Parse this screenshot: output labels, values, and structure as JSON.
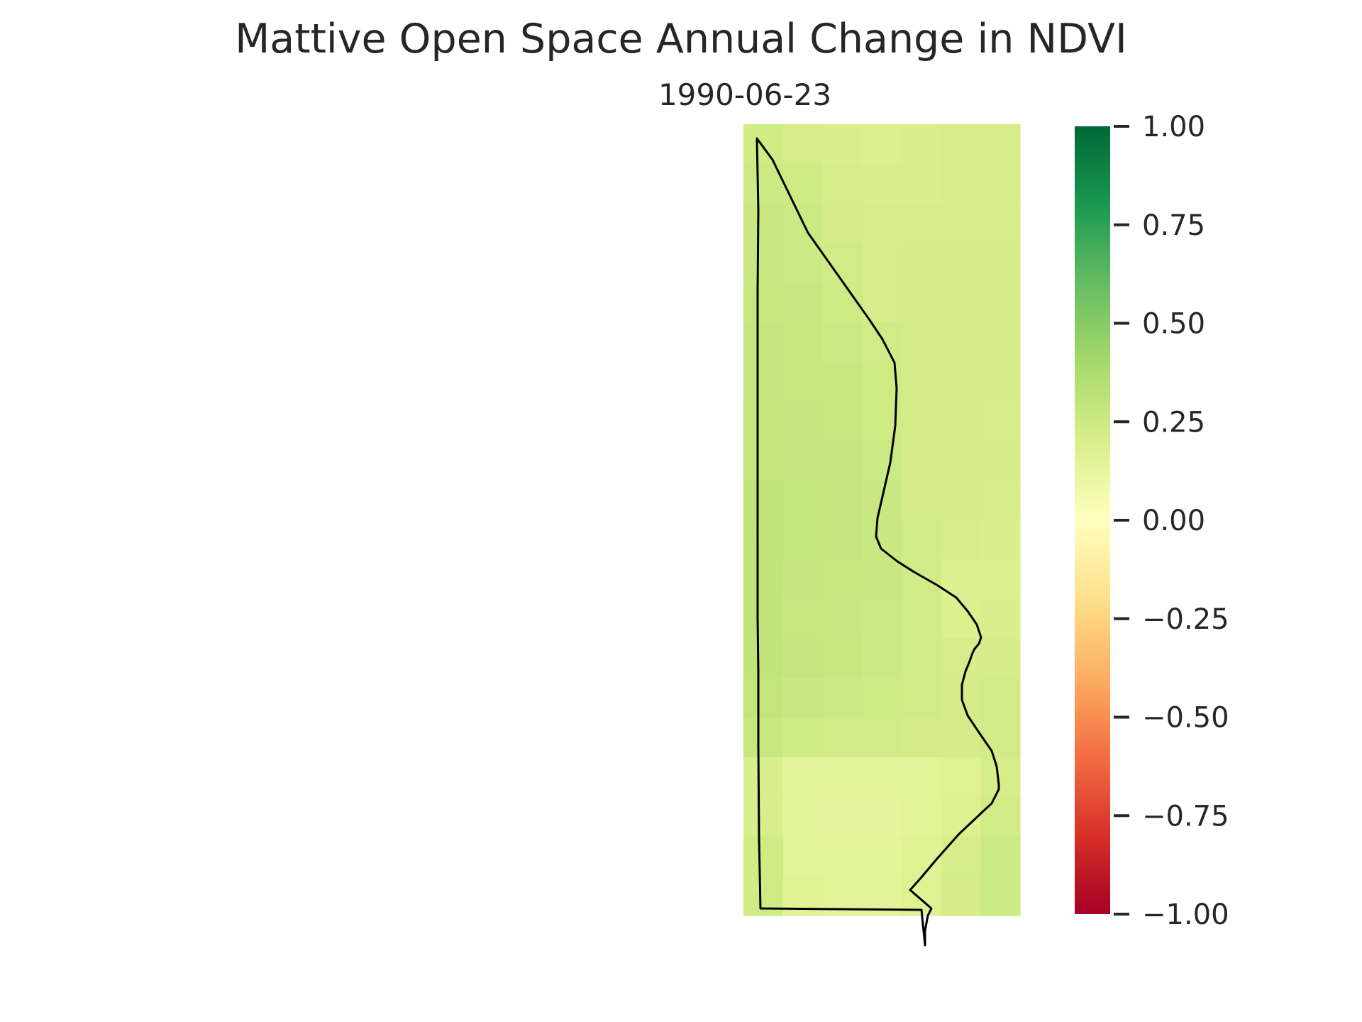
{
  "title": "Mattive Open Space Annual Change in NDVI",
  "subplot_title": "1990-06-23",
  "chart_data": {
    "type": "heatmap",
    "title": "Mattive Open Space Annual Change in NDVI",
    "subtitle": "1990-06-23",
    "xlabel": "",
    "ylabel": "",
    "grid": false,
    "colormap": "RdYlGn",
    "color_range": [
      -1.0,
      1.0
    ],
    "colorbar_ticks": [
      1.0,
      0.75,
      0.5,
      0.25,
      0.0,
      -0.25,
      -0.5,
      -0.75,
      -1.0
    ],
    "colorbar_tick_labels": [
      "1.00",
      "0.75",
      "0.50",
      "0.25",
      "0.00",
      "−0.25",
      "−0.50",
      "−0.75",
      "−1.00"
    ],
    "grid_values": [
      [
        0.24,
        0.21,
        0.2,
        0.19,
        0.2,
        0.21,
        0.21
      ],
      [
        0.25,
        0.24,
        0.21,
        0.2,
        0.2,
        0.21,
        0.21
      ],
      [
        0.26,
        0.25,
        0.22,
        0.21,
        0.21,
        0.21,
        0.21
      ],
      [
        0.26,
        0.25,
        0.23,
        0.21,
        0.22,
        0.22,
        0.22
      ],
      [
        0.27,
        0.26,
        0.24,
        0.21,
        0.22,
        0.22,
        0.22
      ],
      [
        0.28,
        0.27,
        0.25,
        0.23,
        0.22,
        0.22,
        0.22
      ],
      [
        0.28,
        0.27,
        0.27,
        0.24,
        0.22,
        0.22,
        0.22
      ],
      [
        0.29,
        0.28,
        0.27,
        0.24,
        0.22,
        0.22,
        0.21
      ],
      [
        0.29,
        0.28,
        0.28,
        0.25,
        0.22,
        0.22,
        0.22
      ],
      [
        0.3,
        0.29,
        0.28,
        0.26,
        0.22,
        0.22,
        0.21
      ],
      [
        0.3,
        0.29,
        0.28,
        0.26,
        0.23,
        0.21,
        0.2
      ],
      [
        0.3,
        0.28,
        0.27,
        0.26,
        0.23,
        0.19,
        0.19
      ],
      [
        0.3,
        0.27,
        0.26,
        0.25,
        0.23,
        0.19,
        0.2
      ],
      [
        0.3,
        0.28,
        0.27,
        0.25,
        0.23,
        0.21,
        0.22
      ],
      [
        0.29,
        0.26,
        0.25,
        0.24,
        0.23,
        0.22,
        0.23
      ],
      [
        0.27,
        0.24,
        0.23,
        0.23,
        0.22,
        0.22,
        0.23
      ],
      [
        0.2,
        0.14,
        0.14,
        0.14,
        0.15,
        0.17,
        0.21
      ],
      [
        0.2,
        0.14,
        0.13,
        0.13,
        0.15,
        0.18,
        0.23
      ],
      [
        0.24,
        0.15,
        0.14,
        0.14,
        0.16,
        0.21,
        0.25
      ],
      [
        0.24,
        0.16,
        0.15,
        0.15,
        0.17,
        0.22,
        0.25
      ]
    ],
    "boundary_outline": true
  }
}
